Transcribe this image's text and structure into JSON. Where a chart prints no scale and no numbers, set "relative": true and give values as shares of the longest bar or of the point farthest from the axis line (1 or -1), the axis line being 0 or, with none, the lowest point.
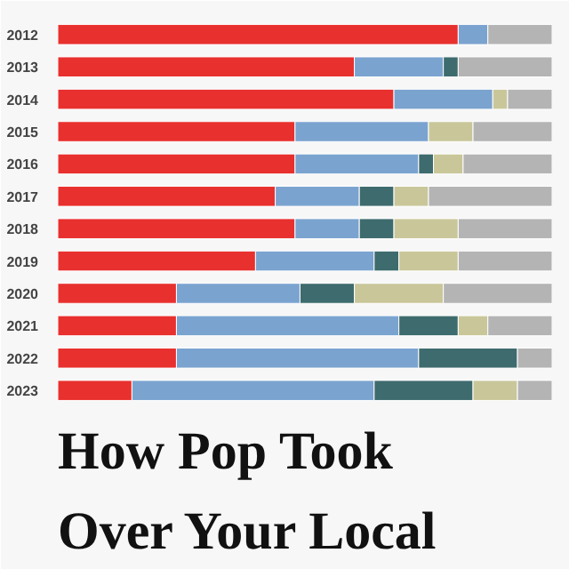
{
  "chart_data": {
    "type": "bar",
    "orientation": "horizontal",
    "stacked": true,
    "relative": true,
    "title": "How Pop Took Over Your Local",
    "categories": [
      "2012",
      "2013",
      "2014",
      "2015",
      "2016",
      "2017",
      "2018",
      "2019",
      "2020",
      "2021",
      "2022",
      "2023"
    ],
    "series": [
      {
        "color": "#e8302e",
        "values": [
          0.81,
          0.6,
          0.68,
          0.48,
          0.48,
          0.44,
          0.48,
          0.4,
          0.24,
          0.24,
          0.24,
          0.15
        ]
      },
      {
        "color": "#7ba3cf",
        "values": [
          0.06,
          0.18,
          0.2,
          0.27,
          0.25,
          0.17,
          0.13,
          0.24,
          0.25,
          0.45,
          0.49,
          0.49
        ]
      },
      {
        "color": "#3e6b6e",
        "values": [
          0,
          0.03,
          0,
          0,
          0.03,
          0.07,
          0.07,
          0.05,
          0.11,
          0.12,
          0.2,
          0.2
        ]
      },
      {
        "color": "#c9c79a",
        "values": [
          0,
          0,
          0.03,
          0.09,
          0.06,
          0.07,
          0.13,
          0.12,
          0.18,
          0.06,
          0,
          0.09
        ]
      },
      {
        "color": "#b4b4b4",
        "values": [
          0.13,
          0.19,
          0.09,
          0.16,
          0.18,
          0.25,
          0.19,
          0.19,
          0.22,
          0.13,
          0.07,
          0.07
        ]
      }
    ],
    "grid": false
  }
}
